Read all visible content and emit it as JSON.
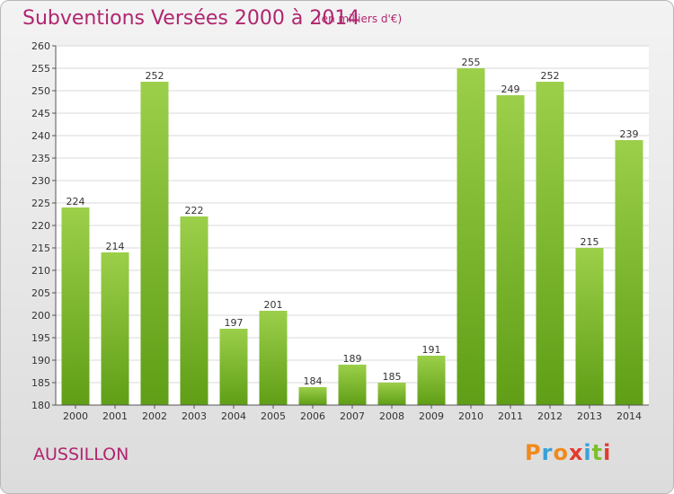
{
  "header": {
    "title": "Subventions Versées 2000 à 2014",
    "subtitle": "(en milliers d'€)"
  },
  "footer": {
    "place": "AUSSILLON",
    "logo": "Proxiti"
  },
  "colors": {
    "title": "#b0256f",
    "bar_top": "#9ccf4a",
    "bar_bottom": "#5f9e16",
    "logo_letters": [
      "#f08a1c",
      "#3aa0d8",
      "#f08a1c",
      "#e23b2e",
      "#3aa0d8",
      "#7dbf2e",
      "#e23b2e"
    ]
  },
  "chart_data": {
    "type": "bar",
    "title": "Subventions Versées 2000 à 2014",
    "subtitle": "(en milliers d'€)",
    "categories": [
      "2000",
      "2001",
      "2002",
      "2003",
      "2004",
      "2005",
      "2006",
      "2007",
      "2008",
      "2009",
      "2010",
      "2011",
      "2012",
      "2013",
      "2014"
    ],
    "values": [
      224,
      214,
      252,
      222,
      197,
      201,
      184,
      189,
      185,
      191,
      255,
      249,
      252,
      215,
      239
    ],
    "ylim": [
      180,
      260
    ],
    "yticks": [
      180,
      185,
      190,
      195,
      200,
      205,
      210,
      215,
      220,
      225,
      230,
      235,
      240,
      245,
      250,
      255,
      260
    ],
    "grid": true,
    "data_labels": true
  }
}
